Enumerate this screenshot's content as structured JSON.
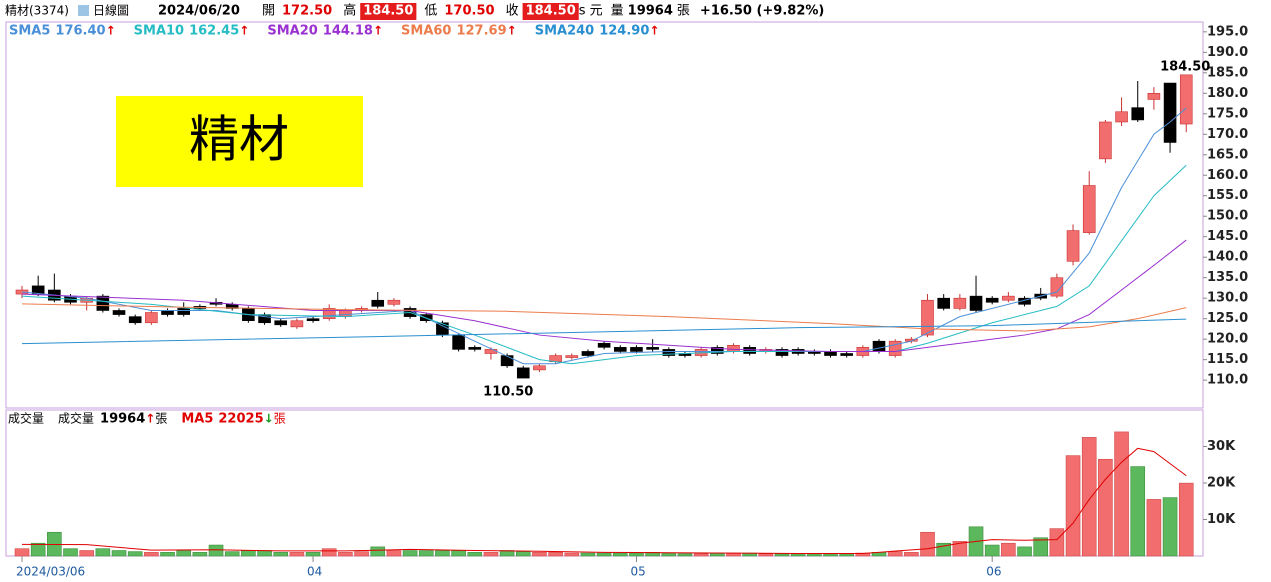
{
  "header": {
    "name": "精材(3374)",
    "period": "日線圖",
    "date": "2024/06/20",
    "fields": [
      {
        "label": "開",
        "value": "172.50",
        "boxed": false
      },
      {
        "label": "高",
        "value": "184.50",
        "boxed": true
      },
      {
        "label": "低",
        "value": "170.50",
        "boxed": false
      },
      {
        "label": "收",
        "value": "184.50",
        "boxed": true
      }
    ],
    "unit": "s 元",
    "volume_label": "量",
    "volume": "19964",
    "volume_unit": "張",
    "change": "+16.50 (+9.82%)"
  },
  "annotation": {
    "text": "精材"
  },
  "chart_data": [
    {
      "type": "candlestick",
      "up_color": "#f26d6d",
      "down_color": "#000000",
      "open": [
        131,
        133,
        132,
        130.5,
        129,
        130.5,
        127,
        125.5,
        124,
        127,
        127.5,
        128,
        129,
        128.5,
        127.5,
        126,
        124.5,
        123,
        125,
        125,
        125.5,
        127,
        129.5,
        128.5,
        127.5,
        126,
        124,
        121,
        118,
        116.5,
        116,
        113,
        112.5,
        114.5,
        115.5,
        117,
        119,
        118,
        118,
        118,
        117.5,
        116.5,
        116,
        118,
        117,
        118,
        117,
        117.5,
        117.5,
        117,
        117,
        116.5,
        116,
        119.5,
        116,
        119.5,
        121,
        130,
        127.5,
        130.5,
        130,
        129.5,
        130,
        131,
        130.5,
        139,
        146,
        164,
        173,
        176.5,
        178.5,
        182.5,
        172.5
      ],
      "high": [
        133,
        135.5,
        136,
        131,
        130.5,
        131,
        127.5,
        126,
        127,
        127.5,
        129,
        128.5,
        130,
        129,
        128,
        126.5,
        125,
        125,
        125.5,
        128.5,
        127.5,
        128,
        131.5,
        130,
        128,
        126.5,
        124.5,
        121.5,
        118.5,
        118,
        116.5,
        113.5,
        114,
        116.5,
        116.5,
        117.5,
        119.5,
        118.5,
        118.5,
        120,
        118,
        117,
        118,
        118.5,
        119,
        118.5,
        118,
        118,
        118,
        117.5,
        117.5,
        117,
        118.5,
        120,
        120,
        120.5,
        131,
        131,
        131,
        135.5,
        130.5,
        131.5,
        130.5,
        132.5,
        136,
        148,
        161,
        173.5,
        179,
        183,
        181.5,
        182.5,
        184.5
      ],
      "low": [
        130,
        130.5,
        129,
        128.5,
        127,
        126.5,
        125.5,
        123.5,
        123.5,
        125.5,
        125.5,
        127,
        128,
        127,
        124,
        123.5,
        123,
        122.5,
        124,
        124.5,
        125,
        126.5,
        127.5,
        128,
        125,
        124,
        120.5,
        117,
        117,
        115,
        113,
        110.5,
        112,
        114,
        115,
        115.5,
        117.5,
        116.5,
        116.5,
        117,
        115.5,
        115.5,
        115.5,
        116,
        116.5,
        116,
        116.5,
        115.5,
        116,
        116,
        115.5,
        115.5,
        115.5,
        116.5,
        115.5,
        119,
        120.5,
        127,
        127,
        126.5,
        128.5,
        129,
        128,
        129.5,
        130,
        138,
        145.5,
        163,
        172,
        173,
        176,
        165.5,
        170.5
      ],
      "close": [
        132,
        131,
        129.5,
        129,
        130,
        127,
        126,
        124,
        126.5,
        126,
        126,
        127.5,
        128.5,
        127.5,
        124.5,
        124,
        123.5,
        124.5,
        124.5,
        127.5,
        127,
        127.5,
        128,
        129.5,
        125.5,
        124.5,
        121,
        117.5,
        117.5,
        117.5,
        113.5,
        110.5,
        113.5,
        116,
        116,
        116,
        118,
        117,
        117,
        117.5,
        116,
        116,
        117.5,
        116.5,
        118.5,
        116.5,
        117.5,
        116,
        116.5,
        116.5,
        116,
        116,
        118,
        117,
        119.5,
        120,
        129.5,
        127.5,
        130,
        127,
        129,
        130.5,
        128.5,
        130,
        135,
        146.5,
        157.5,
        173,
        175.5,
        173.5,
        180,
        168,
        184.5
      ],
      "ylim": [
        103.2,
        197.4
      ],
      "yticks": [
        {
          "value": 110,
          "label": "110.0"
        },
        {
          "value": 115,
          "label": "115.0"
        },
        {
          "value": 120,
          "label": "120.0"
        },
        {
          "value": 125,
          "label": "125.0"
        },
        {
          "value": 130,
          "label": "130.0"
        },
        {
          "value": 135,
          "label": "135.0"
        },
        {
          "value": 140,
          "label": "140.0"
        },
        {
          "value": 145,
          "label": "145.0"
        },
        {
          "value": 150,
          "label": "150.0"
        },
        {
          "value": 155,
          "label": "155.0"
        },
        {
          "value": 160,
          "label": "160.0"
        },
        {
          "value": 165,
          "label": "165.0"
        },
        {
          "value": 170,
          "label": "170.0"
        },
        {
          "value": 175,
          "label": "175.0"
        },
        {
          "value": 180,
          "label": "180.0"
        },
        {
          "value": 185,
          "label": "185.0"
        },
        {
          "value": 190,
          "label": "190.0"
        },
        {
          "value": 195,
          "label": "195.0"
        }
      ],
      "annotations": [
        {
          "x": 72,
          "y": 184.5,
          "text": "184.50"
        },
        {
          "x": 31,
          "y": 110.5,
          "text": "110.50"
        }
      ],
      "trend_color": "#e00000",
      "series": [
        {
          "name": "SMA5",
          "color": "#4a8fd8",
          "legend_value": "176.40",
          "trend": "↑",
          "x": [
            0,
            4,
            8,
            12,
            16,
            20,
            24,
            28,
            31,
            33,
            36,
            40,
            48,
            52,
            55,
            58,
            62,
            64,
            66,
            68,
            70,
            71,
            72
          ],
          "values": [
            131.5,
            130,
            127,
            127,
            125,
            126,
            127,
            119.5,
            114,
            114,
            116.5,
            117,
            117,
            117,
            119.5,
            125.5,
            129.5,
            131.5,
            141,
            157,
            170,
            173,
            176.4
          ]
        },
        {
          "name": "SMA10",
          "color": "#26bcc4",
          "legend_value": "162.45",
          "trend": "↑",
          "x": [
            0,
            8,
            14,
            20,
            24,
            28,
            32,
            34,
            38,
            44,
            50,
            54,
            56,
            60,
            64,
            66,
            68,
            70,
            72
          ],
          "values": [
            130.5,
            128.5,
            126,
            125.5,
            126.5,
            121,
            115,
            114,
            116,
            117,
            117,
            117,
            119,
            124,
            128,
            133,
            144,
            155,
            162.45
          ]
        },
        {
          "name": "SMA20",
          "color": "#9a30d0",
          "legend_value": "144.18",
          "trend": "↑",
          "x": [
            0,
            10,
            18,
            24,
            28,
            32,
            36,
            40,
            44,
            50,
            54,
            58,
            62,
            64,
            66,
            68,
            70,
            72
          ],
          "values": [
            131,
            129.5,
            127,
            127,
            124.5,
            121,
            119.5,
            118.5,
            117.5,
            117,
            117,
            119,
            121,
            122.5,
            126,
            132,
            138,
            144.18
          ]
        },
        {
          "name": "SMA60",
          "color": "#ec7c4c",
          "legend_value": "127.69",
          "trend": "↑",
          "x": [
            0,
            10,
            20,
            30,
            40,
            50,
            56,
            62,
            66,
            69,
            72
          ],
          "values": [
            128.6,
            127.8,
            127.2,
            126.8,
            125.5,
            123.8,
            122.5,
            122,
            123,
            125,
            127.69
          ]
        },
        {
          "name": "SMA240",
          "color": "#2a8fd0",
          "legend_value": "124.90",
          "trend": "↑",
          "x": [
            0,
            24,
            48,
            60,
            72
          ],
          "values": [
            118.9,
            120.8,
            122.8,
            123.3,
            124.9
          ]
        }
      ]
    },
    {
      "type": "bar",
      "title": "成交量",
      "legend": {
        "name": "成交量",
        "trend": "↑",
        "unit": "張"
      },
      "up_color": "#f26d6d",
      "down_color": "#5cb85c",
      "categories": [
        "2024/03/06",
        null,
        null,
        null,
        null,
        null,
        null,
        null,
        null,
        null,
        null,
        null,
        null,
        null,
        null,
        null,
        null,
        null,
        "04",
        null,
        null,
        null,
        null,
        null,
        null,
        null,
        null,
        null,
        null,
        null,
        null,
        null,
        null,
        null,
        null,
        null,
        null,
        null,
        "05",
        null,
        null,
        null,
        null,
        null,
        null,
        null,
        null,
        null,
        null,
        null,
        null,
        null,
        null,
        null,
        null,
        null,
        null,
        null,
        null,
        null,
        "06",
        null,
        null,
        null,
        null,
        null,
        null,
        null,
        null,
        null,
        null,
        null,
        null
      ],
      "values": [
        2000,
        3500,
        6500,
        2000,
        1500,
        2000,
        1500,
        1200,
        1000,
        1000,
        1500,
        1000,
        3000,
        1200,
        1500,
        1500,
        1000,
        1000,
        1000,
        2000,
        1000,
        1200,
        2500,
        1500,
        1500,
        1500,
        1500,
        1500,
        1000,
        1000,
        1500,
        1200,
        1000,
        1000,
        800,
        800,
        800,
        800,
        800,
        1000,
        800,
        600,
        600,
        800,
        800,
        800,
        600,
        600,
        600,
        600,
        600,
        600,
        800,
        1000,
        1200,
        1000,
        6500,
        3500,
        4000,
        8000,
        3000,
        3500,
        2500,
        5000,
        7500,
        27500,
        32500,
        26500,
        34000,
        24500,
        15500,
        16000,
        19964
      ],
      "ylim": [
        0,
        40000
      ],
      "yticks": [
        {
          "value": 10000,
          "label": "10K"
        },
        {
          "value": 20000,
          "label": "20K"
        },
        {
          "value": 30000,
          "label": "30K"
        }
      ],
      "series": [
        {
          "name": "MA5",
          "color": "#e00000",
          "trend": "↓",
          "trend_color": "#1a9a1a",
          "unit": "張",
          "x": [
            0,
            4,
            8,
            12,
            16,
            20,
            24,
            28,
            32,
            36,
            40,
            44,
            48,
            52,
            56,
            58,
            60,
            62,
            64,
            65,
            66,
            67,
            68,
            69,
            70,
            71,
            72
          ],
          "values": [
            3200,
            3100,
            1600,
            1700,
            1400,
            1400,
            1800,
            1500,
            1300,
            1000,
            900,
            800,
            700,
            700,
            2000,
            3500,
            4500,
            4300,
            4500,
            9000,
            15500,
            21000,
            25700,
            29500,
            28600,
            25300,
            22025
          ]
        }
      ]
    }
  ]
}
